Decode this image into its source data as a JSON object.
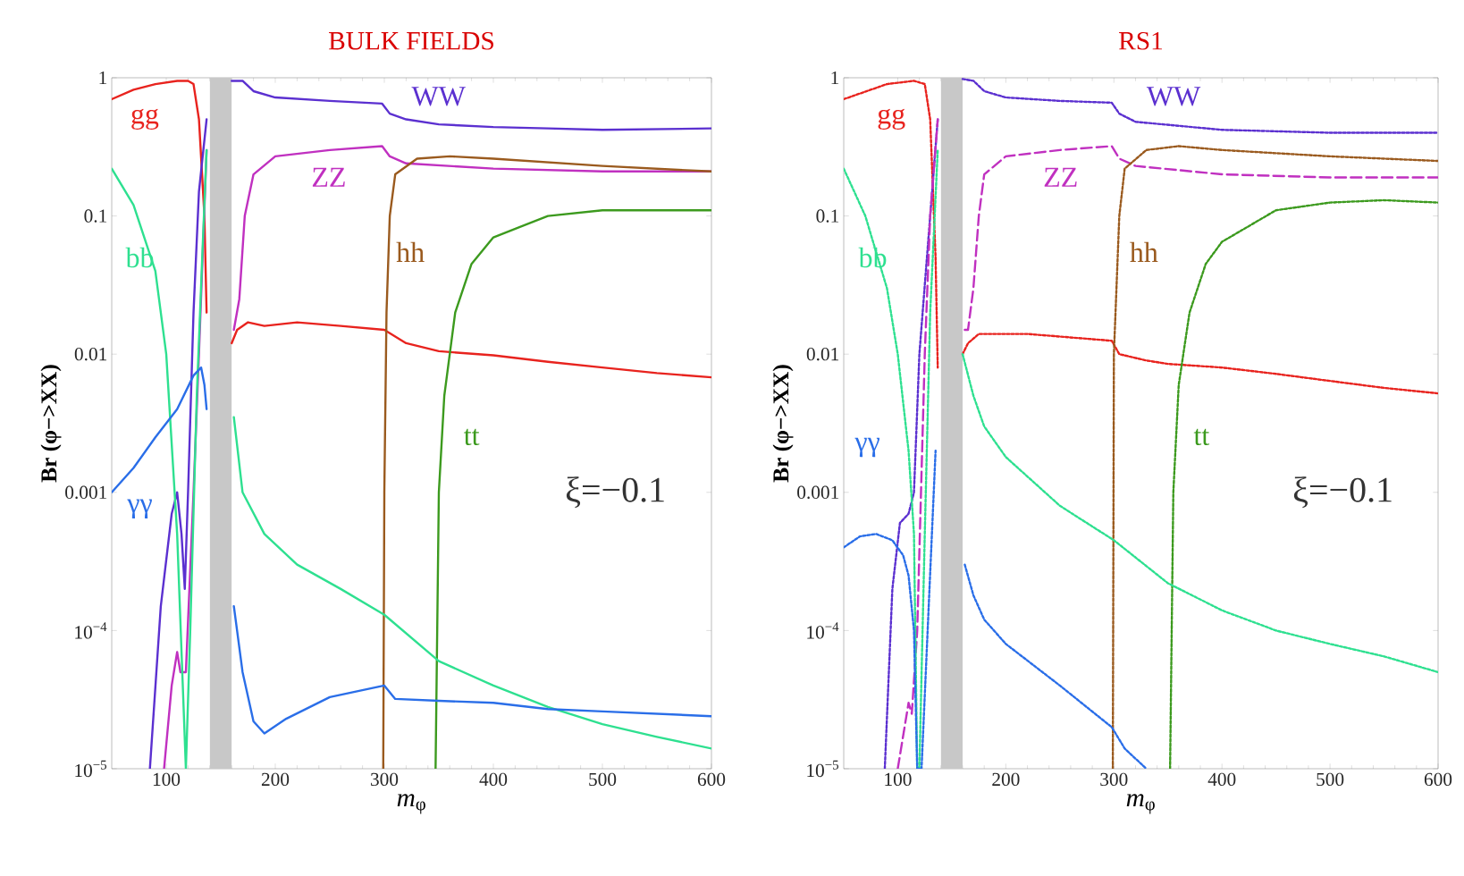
{
  "chart_data": [
    {
      "type": "line",
      "title": "BULK FIELDS",
      "xlabel": "*m*$_{φ}$",
      "ylabel": "Br (φ−>XX)",
      "log": "y",
      "line_style": "solid",
      "xlim": [
        50,
        600
      ],
      "ylim": [
        1e-05,
        1
      ],
      "xticks": [
        100,
        200,
        300,
        400,
        500,
        600
      ],
      "yticks": [
        {
          "value": 1,
          "label": "1"
        },
        {
          "value": 0.1,
          "label": "0.1"
        },
        {
          "value": 0.01,
          "label": "0.01"
        },
        {
          "value": 0.001,
          "label": "0.001"
        },
        {
          "value": 0.0001,
          "label": "10$^{−4}$"
        },
        {
          "value": 1e-05,
          "label": "10$^{−5}$"
        }
      ],
      "bands": [
        {
          "axis": "x",
          "from": 140,
          "to": 160,
          "color": "#c8c8c8"
        }
      ],
      "series": [
        {
          "name": "gg",
          "color": "#e8231e",
          "x": [
            50,
            70,
            90,
            110,
            120,
            125,
            130,
            135,
            137,
            150,
            160,
            165,
            175,
            190,
            220,
            260,
            300,
            320,
            350,
            400,
            450,
            500,
            550,
            600
          ],
          "values": [
            0.7,
            0.82,
            0.9,
            0.95,
            0.95,
            0.9,
            0.5,
            0.1,
            0.02,
            null,
            0.012,
            0.015,
            0.017,
            0.016,
            0.017,
            0.016,
            0.015,
            0.012,
            0.0105,
            0.0098,
            0.0088,
            0.008,
            0.0073,
            0.0068
          ]
        },
        {
          "name": "WW",
          "color": "#5b30d0",
          "x": [
            85,
            95,
            105,
            110,
            114,
            117,
            120,
            125,
            130,
            137,
            150,
            160,
            170,
            180,
            200,
            250,
            298,
            305,
            320,
            350,
            400,
            450,
            500,
            600
          ],
          "values": [
            1e-05,
            0.00015,
            0.0007,
            0.001,
            0.0005,
            0.0002,
            0.001,
            0.02,
            0.15,
            0.5,
            null,
            0.95,
            0.95,
            0.8,
            0.72,
            0.68,
            0.65,
            0.55,
            0.5,
            0.46,
            0.44,
            0.43,
            0.42,
            0.43
          ]
        },
        {
          "name": "ZZ",
          "color": "#c030c0",
          "x": [
            98,
            105,
            110,
            113,
            118,
            125,
            130,
            137,
            150,
            162,
            167,
            172,
            180,
            200,
            250,
            298,
            305,
            320,
            400,
            500,
            600
          ],
          "values": [
            1e-05,
            4e-05,
            7e-05,
            5e-05,
            5e-05,
            0.001,
            0.01,
            0.3,
            null,
            0.015,
            0.025,
            0.1,
            0.2,
            0.27,
            0.3,
            0.32,
            0.27,
            0.24,
            0.22,
            0.21,
            0.21
          ]
        },
        {
          "name": "hh",
          "color": "#9a5a1e",
          "x": [
            299,
            300,
            302,
            305,
            310,
            330,
            360,
            400,
            500,
            600
          ],
          "values": [
            1e-05,
            0.001,
            0.02,
            0.1,
            0.2,
            0.26,
            0.27,
            0.26,
            0.23,
            0.21
          ]
        },
        {
          "name": "tt",
          "color": "#3c9a1e",
          "x": [
            347,
            350,
            355,
            365,
            380,
            400,
            450,
            500,
            600
          ],
          "values": [
            1e-05,
            0.001,
            0.005,
            0.02,
            0.045,
            0.07,
            0.1,
            0.11,
            0.11
          ]
        },
        {
          "name": "bb",
          "color": "#2ee090",
          "x": [
            50,
            70,
            90,
            100,
            110,
            118,
            122,
            128,
            133,
            137,
            150,
            162,
            170,
            190,
            220,
            260,
            300,
            350,
            400,
            450,
            500,
            550,
            600
          ],
          "values": [
            0.22,
            0.12,
            0.04,
            0.01,
            0.0005,
            1e-05,
            0.0001,
            0.005,
            0.05,
            0.3,
            null,
            0.0035,
            0.001,
            0.0005,
            0.0003,
            0.0002,
            0.00013,
            6e-05,
            4e-05,
            2.8e-05,
            2.1e-05,
            1.7e-05,
            1.4e-05
          ]
        },
        {
          "name": "γγ",
          "color": "#2a6ee8",
          "x": [
            50,
            70,
            90,
            110,
            125,
            132,
            135,
            137,
            150,
            162,
            170,
            180,
            190,
            210,
            250,
            300,
            310,
            350,
            400,
            450,
            500,
            600
          ],
          "values": [
            0.001,
            0.0015,
            0.0025,
            0.004,
            0.007,
            0.008,
            0.006,
            0.004,
            null,
            0.00015,
            5e-05,
            2.2e-05,
            1.8e-05,
            2.3e-05,
            3.3e-05,
            4e-05,
            3.2e-05,
            3.1e-05,
            3e-05,
            2.7e-05,
            2.6e-05,
            2.4e-05
          ]
        }
      ],
      "annotations": [
        "ξ=−0.1"
      ]
    },
    {
      "type": "line",
      "title": "RS1",
      "xlabel": "*m*$_{φ}$",
      "ylabel": "Br (φ−>XX)",
      "log": "y",
      "line_style": "dotted",
      "xlim": [
        50,
        600
      ],
      "ylim": [
        1e-05,
        1
      ],
      "xticks": [
        100,
        200,
        300,
        400,
        500,
        600
      ],
      "yticks": [
        {
          "value": 1,
          "label": "1"
        },
        {
          "value": 0.1,
          "label": "0.1"
        },
        {
          "value": 0.01,
          "label": "0.01"
        },
        {
          "value": 0.001,
          "label": "0.001"
        },
        {
          "value": 0.0001,
          "label": "10$^{−4}$"
        },
        {
          "value": 1e-05,
          "label": "10$^{−5}$"
        }
      ],
      "bands": [
        {
          "axis": "x",
          "from": 140,
          "to": 160,
          "color": "#c8c8c8"
        }
      ],
      "series": [
        {
          "name": "gg",
          "color": "#e8231e",
          "x": [
            50,
            90,
            115,
            125,
            130,
            135,
            137,
            150,
            160,
            165,
            175,
            220,
            298,
            305,
            330,
            350,
            400,
            450,
            500,
            550,
            600
          ],
          "values": [
            0.7,
            0.9,
            0.95,
            0.9,
            0.5,
            0.05,
            0.008,
            null,
            0.01,
            0.012,
            0.014,
            0.014,
            0.0125,
            0.01,
            0.009,
            0.0085,
            0.008,
            0.0072,
            0.0064,
            0.0057,
            0.0052
          ]
        },
        {
          "name": "WW",
          "color": "#5b30d0",
          "x": [
            88,
            95,
            102,
            110,
            115,
            120,
            130,
            137,
            150,
            160,
            170,
            180,
            200,
            250,
            298,
            305,
            320,
            400,
            500,
            600
          ],
          "values": [
            1e-05,
            0.0002,
            0.0006,
            0.0007,
            0.001,
            0.01,
            0.1,
            0.5,
            null,
            0.98,
            0.95,
            0.8,
            0.72,
            0.68,
            0.66,
            0.55,
            0.48,
            0.42,
            0.4,
            0.4
          ]
        },
        {
          "name": "ZZ",
          "color": "#c030c0",
          "line_style": "dashed",
          "x": [
            100,
            110,
            113,
            118,
            125,
            130,
            137,
            150,
            162,
            165,
            170,
            175,
            180,
            200,
            250,
            298,
            305,
            320,
            400,
            500,
            600
          ],
          "values": [
            1e-05,
            3e-05,
            2.5e-05,
            0.0001,
            0.01,
            0.1,
            0.5,
            null,
            0.015,
            0.015,
            0.03,
            0.1,
            0.2,
            0.27,
            0.3,
            0.32,
            0.26,
            0.23,
            0.2,
            0.19,
            0.19
          ]
        },
        {
          "name": "hh",
          "color": "#9a5a1e",
          "x": [
            299,
            300,
            305,
            310,
            330,
            360,
            400,
            500,
            600
          ],
          "values": [
            1e-05,
            0.01,
            0.1,
            0.22,
            0.3,
            0.32,
            0.3,
            0.27,
            0.25
          ]
        },
        {
          "name": "tt",
          "color": "#3c9a1e",
          "x": [
            352,
            355,
            360,
            370,
            385,
            400,
            450,
            500,
            550,
            600
          ],
          "values": [
            1e-05,
            0.001,
            0.006,
            0.02,
            0.045,
            0.065,
            0.11,
            0.125,
            0.13,
            0.125
          ]
        },
        {
          "name": "bb",
          "color": "#2ee090",
          "x": [
            50,
            70,
            90,
            100,
            110,
            115,
            118,
            120,
            125,
            130,
            137,
            150,
            160,
            170,
            180,
            200,
            250,
            300,
            350,
            400,
            450,
            500,
            550,
            600
          ],
          "values": [
            0.22,
            0.1,
            0.03,
            0.01,
            0.002,
            0.0005,
            1e-05,
            1e-05,
            0.0005,
            0.02,
            0.3,
            null,
            0.01,
            0.005,
            0.003,
            0.0018,
            0.0008,
            0.00045,
            0.00022,
            0.00014,
            0.0001,
            8e-05,
            6.5e-05,
            5e-05
          ]
        },
        {
          "name": "γγ",
          "color": "#2a6ee8",
          "x": [
            50,
            65,
            80,
            95,
            105,
            110,
            115,
            118,
            122,
            135,
            150,
            162,
            170,
            180,
            200,
            250,
            298,
            310,
            330
          ],
          "values": [
            0.0004,
            0.00048,
            0.0005,
            0.00045,
            0.00035,
            0.00025,
            0.0001,
            1e-05,
            1e-05,
            0.002,
            null,
            0.0003,
            0.00018,
            0.00012,
            8e-05,
            4e-05,
            2e-05,
            1.4e-05,
            1e-05
          ]
        }
      ],
      "annotations": [
        "ξ=−0.1"
      ]
    }
  ]
}
